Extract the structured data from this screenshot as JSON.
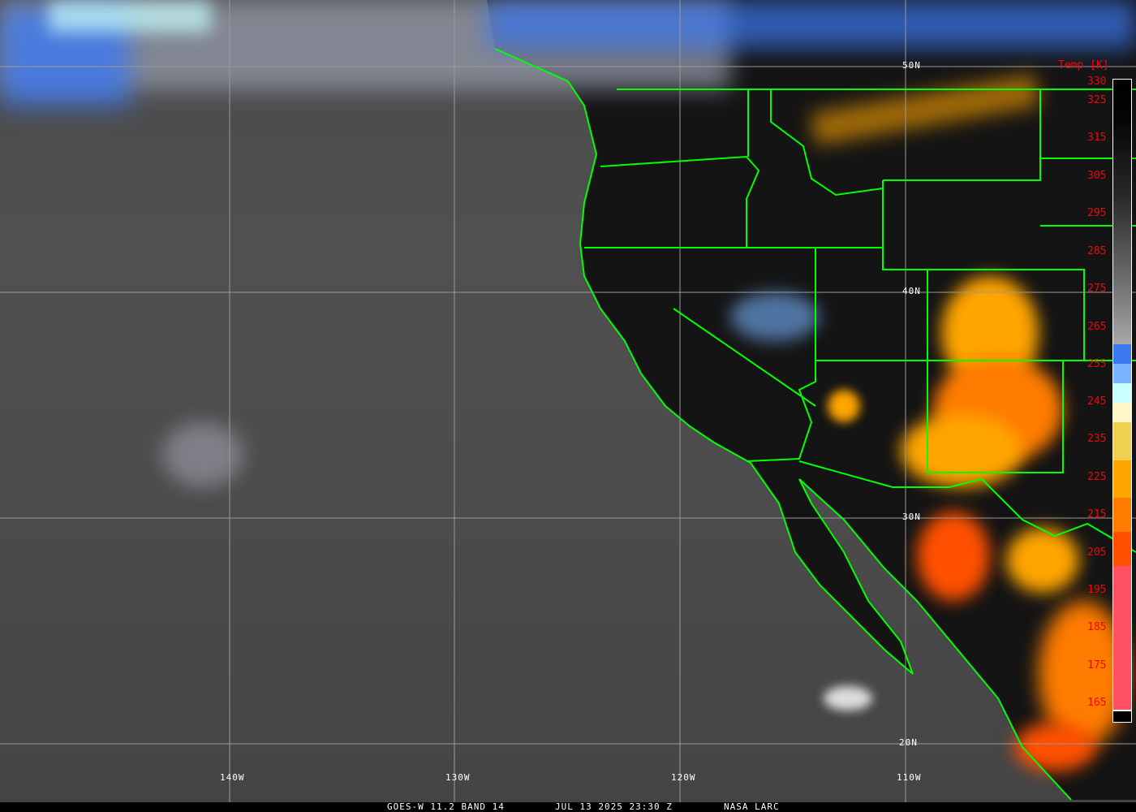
{
  "caption": {
    "satellite": "GOES-W 11.2 BAND 14",
    "datetime": "JUL 13 2025 23:30 Z",
    "source": "NASA LARC"
  },
  "grid": {
    "longitudes": [
      "140W",
      "130W",
      "120W",
      "110W"
    ],
    "latitudes": [
      "50N",
      "40N",
      "30N",
      "20N"
    ]
  },
  "legend": {
    "title": "Temp [K]",
    "ticks": [
      "330",
      "325",
      "315",
      "305",
      "295",
      "285",
      "275",
      "265",
      "255",
      "245",
      "235",
      "225",
      "215",
      "205",
      "195",
      "185",
      "175",
      "165"
    ],
    "colors": {
      "cold_pink": "#ff5064",
      "red_orange": "#ff5000",
      "orange": "#ff7c00",
      "amber": "#ffa500",
      "yellow": "#f0d050",
      "pale_yellow": "#fff8c8",
      "pale_cyan": "#c8ffff",
      "light_blue": "#78b4ff",
      "blue": "#3c78f0",
      "border_green": "#00ff00"
    }
  }
}
